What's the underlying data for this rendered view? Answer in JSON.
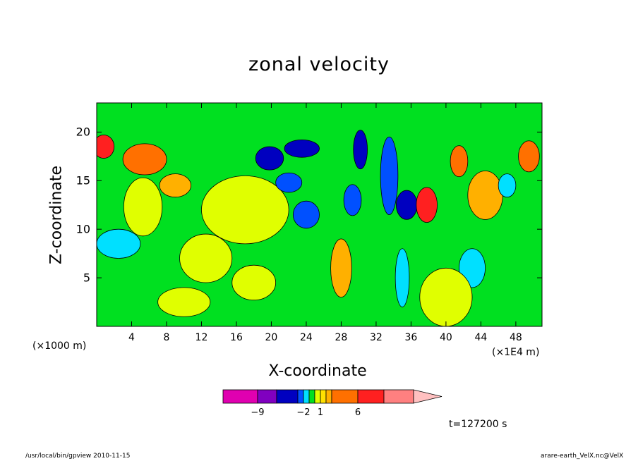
{
  "chart_data": {
    "type": "heatmap",
    "title": "zonal velocity",
    "xlabel": "X-coordinate",
    "ylabel": "Z-coordinate",
    "x_unit_label": "(×1E4 m)",
    "y_unit_label": "(×1000 m)",
    "xlim": [
      0,
      51
    ],
    "ylim": [
      0,
      23
    ],
    "x_ticks": [
      4,
      8,
      12,
      16,
      20,
      24,
      28,
      32,
      36,
      40,
      44,
      48
    ],
    "y_ticks": [
      5,
      10,
      15,
      20
    ],
    "time_label": "t=127200 s",
    "colorbar": {
      "labels": [
        {
          "value": -9,
          "text": "−9"
        },
        {
          "value": -2,
          "text": "−2"
        },
        {
          "value": 1,
          "text": "1"
        },
        {
          "value": 6,
          "text": "6"
        }
      ],
      "bins": [
        {
          "from": -12,
          "to": -9,
          "color": "#e000b0"
        },
        {
          "from": -9,
          "to": -6,
          "color": "#8000c0"
        },
        {
          "from": -6,
          "to": -3,
          "color": "#0000c0"
        },
        {
          "from": -3,
          "to": -2,
          "color": "#0050ff"
        },
        {
          "from": -2,
          "to": -1,
          "color": "#00e0ff"
        },
        {
          "from": -1,
          "to": 0,
          "color": "#00e020"
        },
        {
          "from": 0,
          "to": 1,
          "color": "#e0ff00"
        },
        {
          "from": 1,
          "to": 2,
          "color": "#ffe000"
        },
        {
          "from": 2,
          "to": 3,
          "color": "#ffb000"
        },
        {
          "from": 3,
          "to": 6,
          "color": "#ff7000"
        },
        {
          "from": 6,
          "to": 9,
          "color": "#ff2020"
        },
        {
          "from": 9,
          "to": 12,
          "color": "#ff8080"
        }
      ],
      "overflow_color": "#ffc0c0"
    },
    "regions": [
      {
        "x": 0.8,
        "z": 18.5,
        "rx": 1.2,
        "rz": 1.2,
        "v": 7
      },
      {
        "x": 5.5,
        "z": 17.2,
        "rx": 2.5,
        "rz": 1.6,
        "v": 4
      },
      {
        "x": 5.3,
        "z": 12.3,
        "rx": 2.2,
        "rz": 3.0,
        "v": 0.5
      },
      {
        "x": 2.5,
        "z": 8.5,
        "rx": 2.5,
        "rz": 1.5,
        "v": -1.5
      },
      {
        "x": 9.0,
        "z": 14.5,
        "rx": 1.8,
        "rz": 1.2,
        "v": 2.5
      },
      {
        "x": 17.0,
        "z": 12.0,
        "rx": 5.0,
        "rz": 3.5,
        "v": 0.5
      },
      {
        "x": 12.5,
        "z": 7.0,
        "rx": 3.0,
        "rz": 2.5,
        "v": 0.5
      },
      {
        "x": 19.8,
        "z": 17.3,
        "rx": 1.6,
        "rz": 1.2,
        "v": -5
      },
      {
        "x": 23.5,
        "z": 18.3,
        "rx": 2.0,
        "rz": 0.9,
        "v": -5
      },
      {
        "x": 22.0,
        "z": 14.8,
        "rx": 1.5,
        "rz": 1.0,
        "v": -2.5
      },
      {
        "x": 24.0,
        "z": 11.5,
        "rx": 1.5,
        "rz": 1.4,
        "v": -2.5
      },
      {
        "x": 29.3,
        "z": 13.0,
        "rx": 1.0,
        "rz": 1.6,
        "v": -2.5
      },
      {
        "x": 30.2,
        "z": 18.2,
        "rx": 0.8,
        "rz": 2.0,
        "v": -4
      },
      {
        "x": 33.5,
        "z": 15.5,
        "rx": 1.0,
        "rz": 4.0,
        "v": -2.5
      },
      {
        "x": 35.5,
        "z": 12.5,
        "rx": 1.2,
        "rz": 1.5,
        "v": -5
      },
      {
        "x": 37.8,
        "z": 12.5,
        "rx": 1.2,
        "rz": 1.8,
        "v": 8
      },
      {
        "x": 41.5,
        "z": 17.0,
        "rx": 1.0,
        "rz": 1.6,
        "v": 4
      },
      {
        "x": 44.5,
        "z": 13.5,
        "rx": 2.0,
        "rz": 2.5,
        "v": 2.5
      },
      {
        "x": 49.5,
        "z": 17.5,
        "rx": 1.2,
        "rz": 1.6,
        "v": 4
      },
      {
        "x": 47.0,
        "z": 14.5,
        "rx": 1.0,
        "rz": 1.2,
        "v": -1.5
      },
      {
        "x": 43.0,
        "z": 6.0,
        "rx": 1.5,
        "rz": 2.0,
        "v": -1.5
      },
      {
        "x": 40.0,
        "z": 3.0,
        "rx": 3.0,
        "rz": 3.0,
        "v": 0.5
      },
      {
        "x": 28.0,
        "z": 6.0,
        "rx": 1.2,
        "rz": 3.0,
        "v": 2.5
      },
      {
        "x": 35.0,
        "z": 5.0,
        "rx": 0.8,
        "rz": 3.0,
        "v": -1.5
      },
      {
        "x": 10.0,
        "z": 2.5,
        "rx": 3.0,
        "rz": 1.5,
        "v": 0.5
      },
      {
        "x": 18.0,
        "z": 4.5,
        "rx": 2.5,
        "rz": 1.8,
        "v": 0.5
      }
    ]
  },
  "footer": {
    "left": "/usr/local/bin/gpview  2010-11-15",
    "right": "arare-earth_VelX.nc@VelX"
  }
}
